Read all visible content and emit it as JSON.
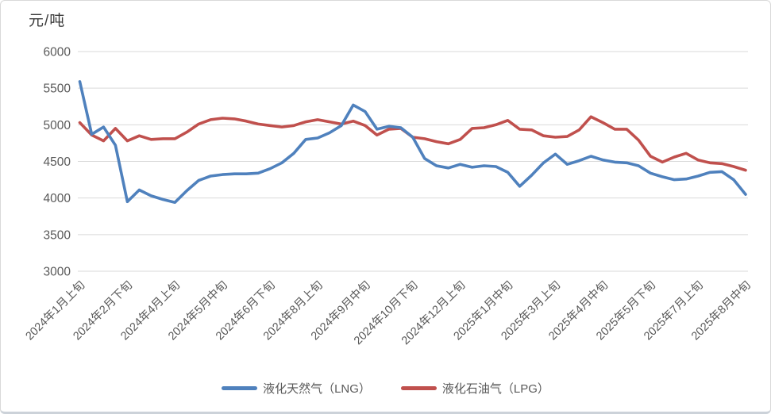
{
  "chart": {
    "unit_label": "元/吨"
  },
  "chart_data": {
    "type": "line",
    "title": "",
    "ylabel_unit": "元/吨",
    "ylim": [
      3000,
      6000
    ],
    "yticks": [
      3000,
      3500,
      4000,
      4500,
      5000,
      5500,
      6000
    ],
    "grid": true,
    "legend_position": "bottom",
    "label_interval": 4,
    "x_labels_visible": [
      "2024年1月上旬",
      "2024年2月下旬",
      "2024年4月上旬",
      "2024年5月中旬",
      "2024年6月下旬",
      "2024年8月上旬",
      "2024年9月中旬",
      "2024年10月下旬",
      "2024年12月上旬",
      "2025年1月中旬",
      "2025年3月上旬",
      "2025年4月中旬",
      "2025年5月下旬",
      "2025年7月上旬",
      "2025年8月中旬"
    ],
    "axis_text_color": "#595959",
    "gridline_color": "#D9D9D9",
    "series": [
      {
        "name": "液化天然气（LNG）",
        "color": "#4F81BD",
        "values": [
          5590,
          4870,
          4970,
          4720,
          3950,
          4110,
          4030,
          3980,
          3940,
          4100,
          4240,
          4300,
          4320,
          4330,
          4330,
          4340,
          4400,
          4480,
          4610,
          4800,
          4820,
          4890,
          4990,
          5270,
          5180,
          4940,
          4980,
          4960,
          4830,
          4540,
          4440,
          4410,
          4460,
          4420,
          4440,
          4430,
          4350,
          4160,
          4310,
          4480,
          4600,
          4460,
          4510,
          4570,
          4520,
          4490,
          4480,
          4440,
          4340,
          4290,
          4250,
          4260,
          4300,
          4350,
          4360,
          4250,
          4050
        ]
      },
      {
        "name": "液化石油气（LPG）",
        "color": "#C0504D",
        "values": [
          5030,
          4860,
          4780,
          4950,
          4780,
          4850,
          4800,
          4810,
          4810,
          4900,
          5010,
          5070,
          5090,
          5080,
          5050,
          5010,
          4990,
          4970,
          4990,
          5040,
          5070,
          5040,
          5010,
          5050,
          4990,
          4860,
          4940,
          4950,
          4830,
          4810,
          4770,
          4740,
          4800,
          4950,
          4960,
          5000,
          5060,
          4940,
          4930,
          4850,
          4830,
          4840,
          4930,
          5110,
          5030,
          4940,
          4940,
          4790,
          4570,
          4490,
          4560,
          4610,
          4520,
          4480,
          4470,
          4430,
          4380
        ]
      }
    ]
  }
}
